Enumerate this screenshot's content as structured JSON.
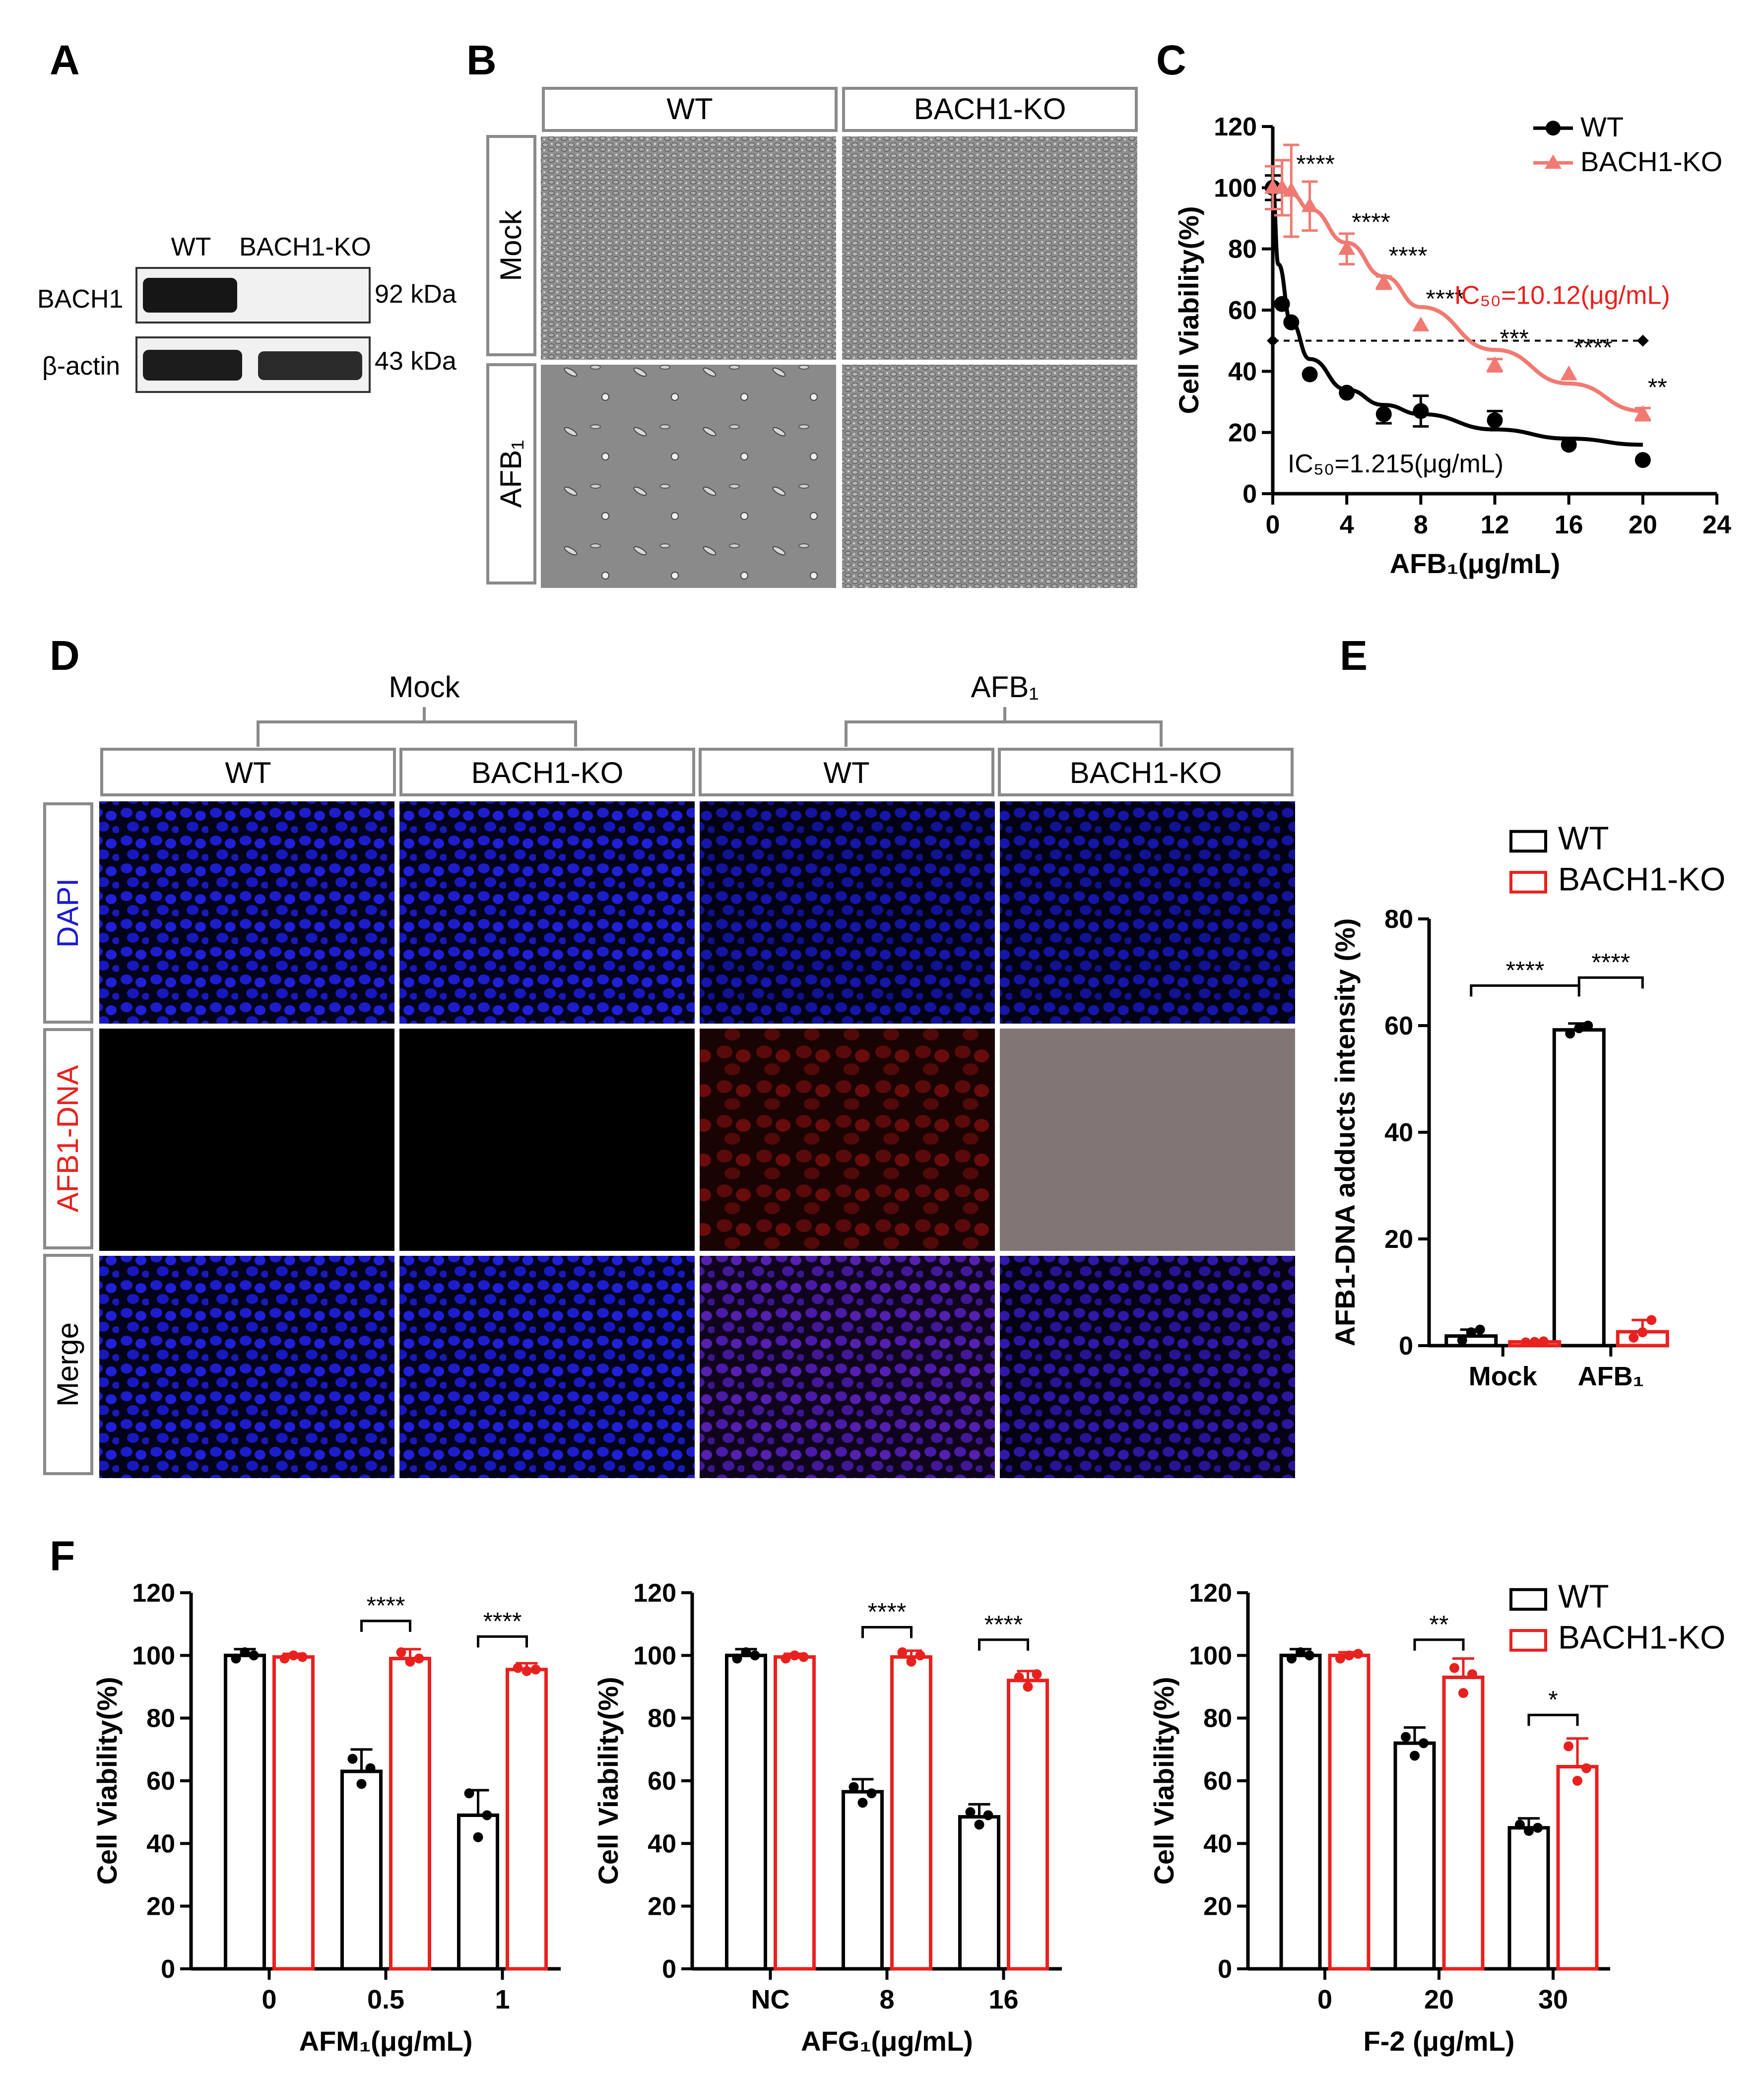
{
  "panels": {
    "A": "A",
    "B": "B",
    "C": "C",
    "D": "D",
    "E": "E",
    "F": "F"
  },
  "colors": {
    "wt": "#000000",
    "ko": "#e8211e",
    "ko_line": "#f07a72",
    "dapi": "#1c1cd0",
    "afb_dna": "#e8211e",
    "box": "#808080"
  },
  "western": {
    "lanes": [
      "WT",
      "BACH1-KO"
    ],
    "bands": [
      {
        "label": "BACH1",
        "size": "92 kDa",
        "wt": 1,
        "ko": 0
      },
      {
        "label": "β-actin",
        "size": "43 kDa",
        "wt": 1,
        "ko": 1
      }
    ]
  },
  "panel_b": {
    "cols": [
      "WT",
      "BACH1-KO"
    ],
    "rows": [
      "Mock",
      "AFB₁"
    ]
  },
  "panel_d": {
    "groups": [
      "Mock",
      "AFB₁"
    ],
    "cols": [
      "WT",
      "BACH1-KO",
      "WT",
      "BACH1-KO"
    ],
    "rows": [
      "DAPI",
      "AFB1-DNA",
      "Merge"
    ],
    "afb_dna_intensity": [
      0,
      0,
      1,
      0.35
    ]
  },
  "chart_data": [
    {
      "id": "C",
      "type": "scatter",
      "xlabel": "AFB₁(μg/mL)",
      "ylabel": "Cell Viability(%)",
      "xlim": [
        0,
        24
      ],
      "ylim": [
        0,
        120
      ],
      "xticks": [
        "0",
        "4",
        "8",
        "12",
        "16",
        "20",
        "24"
      ],
      "yticks": [
        "0",
        "20",
        "40",
        "60",
        "80",
        "100",
        "120"
      ],
      "legend_position": "top-right",
      "series": [
        {
          "name": "WT",
          "x": [
            0,
            0.5,
            1,
            2,
            4,
            6,
            8,
            12,
            16,
            20
          ],
          "y": [
            100,
            62,
            56,
            39,
            33,
            26,
            27,
            24,
            16,
            11
          ],
          "err": [
            4,
            0,
            0,
            0,
            0,
            3,
            5,
            3,
            0,
            0
          ]
        },
        {
          "name": "BACH1-KO",
          "x": [
            0,
            0.5,
            1,
            2,
            4,
            6,
            8,
            12,
            16,
            20
          ],
          "y": [
            100,
            100,
            99,
            94,
            80,
            69,
            55,
            42,
            39,
            26
          ],
          "err": [
            7,
            9,
            15,
            8,
            5,
            2,
            0,
            2,
            0,
            2
          ]
        }
      ],
      "significance": [
        {
          "x": 1,
          "label": "****"
        },
        {
          "x": 4,
          "label": "****"
        },
        {
          "x": 6,
          "label": "****"
        },
        {
          "x": 8,
          "label": "****"
        },
        {
          "x": 12,
          "label": "***"
        },
        {
          "x": 16,
          "label": "****"
        },
        {
          "x": 20,
          "label": "**"
        }
      ],
      "reference_y": 50,
      "ic50_labels": {
        "WT": "IC₅₀=1.215(μg/mL)",
        "BACH1-KO": "IC₅₀=10.12(μg/mL)"
      }
    },
    {
      "id": "E",
      "type": "bar",
      "categories": [
        "Mock",
        "AFB₁"
      ],
      "ylabel": "AFB1-DNA adducts intensity (%)",
      "ylim": [
        0,
        80
      ],
      "yticks": [
        "0",
        "20",
        "40",
        "60",
        "80"
      ],
      "legend_position": "top-right",
      "series": [
        {
          "name": "WT",
          "values": [
            1.8,
            59.2
          ],
          "err": [
            1.2,
            1.2
          ],
          "points": [
            [
              1,
              2.5,
              3
            ],
            [
              58.5,
              59.5,
              60
            ]
          ]
        },
        {
          "name": "BACH1-KO",
          "values": [
            0.7,
            2.6
          ],
          "err": [
            0,
            2.2
          ],
          "points": [
            [
              0.6,
              0.7,
              0.8
            ],
            [
              1.5,
              2.5,
              4.8
            ]
          ]
        }
      ],
      "brackets": [
        {
          "from": [
            0,
            0
          ],
          "to": [
            1,
            0
          ],
          "label": "****"
        },
        {
          "from": [
            1,
            0
          ],
          "to": [
            1,
            1
          ],
          "label": "****"
        }
      ]
    },
    {
      "id": "F1",
      "type": "bar",
      "categories": [
        "0",
        "0.5",
        "1"
      ],
      "xlabel": "AFM₁(μg/mL)",
      "ylabel": "Cell Viability(%)",
      "ylim": [
        0,
        120
      ],
      "yticks": [
        "0",
        "20",
        "40",
        "60",
        "80",
        "100",
        "120"
      ],
      "series": [
        {
          "name": "WT",
          "values": [
            100,
            63,
            49
          ],
          "err": [
            2,
            7,
            8
          ],
          "points": [
            [
              99,
              101,
              100
            ],
            [
              67,
              59,
              64
            ],
            [
              56,
              42,
              49
            ]
          ]
        },
        {
          "name": "BACH1-KO",
          "values": [
            99.5,
            99,
            95.5
          ],
          "err": [
            1,
            3,
            2
          ],
          "points": [
            [
              99,
              100,
              99.5
            ],
            [
              101,
              98,
              99
            ],
            [
              96,
              95,
              95.5
            ]
          ]
        }
      ],
      "brackets": [
        {
          "cat": 1,
          "label": "****",
          "y": 111
        },
        {
          "cat": 2,
          "label": "****",
          "y": 106
        }
      ]
    },
    {
      "id": "F2",
      "type": "bar",
      "categories": [
        "NC",
        "8",
        "16"
      ],
      "xlabel": "AFG₁(μg/mL)",
      "ylabel": "Cell Viability(%)",
      "ylim": [
        0,
        120
      ],
      "yticks": [
        "0",
        "20",
        "40",
        "60",
        "80",
        "100",
        "120"
      ],
      "series": [
        {
          "name": "WT",
          "values": [
            100,
            56.5,
            48.5
          ],
          "err": [
            2,
            4,
            4
          ],
          "points": [
            [
              99,
              101,
              100
            ],
            [
              58,
              53,
              56
            ],
            [
              50,
              46,
              49
            ]
          ]
        },
        {
          "name": "BACH1-KO",
          "values": [
            99.5,
            99.5,
            92
          ],
          "err": [
            1,
            2,
            3
          ],
          "points": [
            [
              99,
              100,
              99.5
            ],
            [
              101,
              98,
              100
            ],
            [
              93,
              90,
              94
            ]
          ]
        }
      ],
      "brackets": [
        {
          "cat": 1,
          "label": "****",
          "y": 109
        },
        {
          "cat": 2,
          "label": "****",
          "y": 105
        }
      ]
    },
    {
      "id": "F3",
      "type": "bar",
      "categories": [
        "0",
        "20",
        "30"
      ],
      "xlabel": "F-2 (μg/mL)",
      "ylabel": "Cell Viability(%)",
      "ylim": [
        0,
        120
      ],
      "yticks": [
        "0",
        "20",
        "40",
        "60",
        "80",
        "100",
        "120"
      ],
      "legend_position": "top-right",
      "series": [
        {
          "name": "WT",
          "values": [
            100,
            72,
            45
          ],
          "err": [
            2,
            5,
            3
          ],
          "points": [
            [
              99,
              101,
              100
            ],
            [
              74,
              68,
              72
            ],
            [
              46,
              44,
              45
            ]
          ]
        },
        {
          "name": "BACH1-KO",
          "values": [
            100,
            93,
            64.5
          ],
          "err": [
            1,
            6,
            9
          ],
          "points": [
            [
              99,
              100,
              100.5
            ],
            [
              96,
              88,
              94
            ],
            [
              71,
              60,
              64
            ]
          ]
        }
      ],
      "brackets": [
        {
          "cat": 1,
          "label": "**",
          "y": 105
        },
        {
          "cat": 2,
          "label": "*",
          "y": 81
        }
      ]
    }
  ]
}
